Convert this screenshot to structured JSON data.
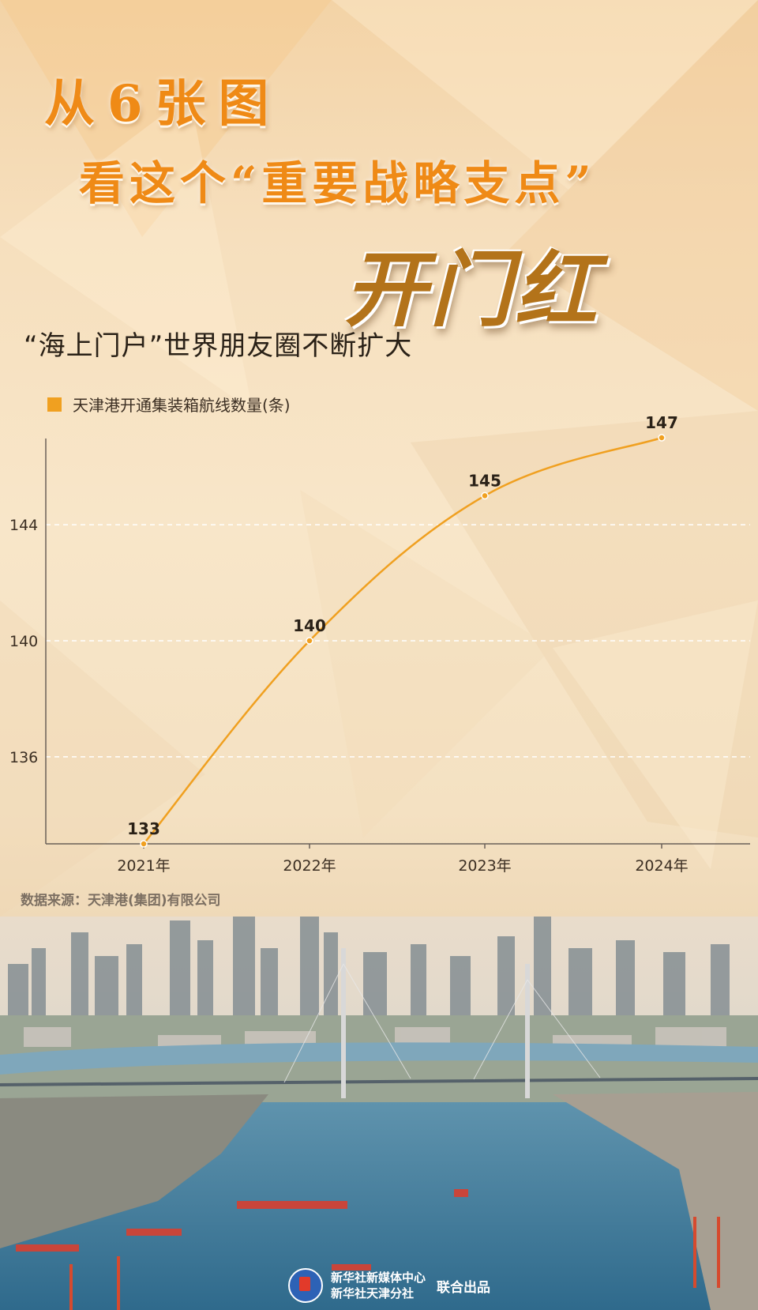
{
  "header": {
    "line1": "从6张图",
    "line2": "看这个“重要战略支点”",
    "line3": "开门红"
  },
  "chart_data": {
    "type": "line",
    "title": "“海上门户”世界朋友圈不断扩大",
    "categories": [
      "2021年",
      "2022年",
      "2023年",
      "2024年"
    ],
    "series": [
      {
        "name": "天津港开通集装箱航线数量(条)",
        "values": [
          133,
          140,
          145,
          147
        ],
        "color": "#f0a020"
      }
    ],
    "yticks": [
      136,
      140,
      144
    ],
    "ylim": [
      133,
      147
    ],
    "grid": "horizontal-dashed",
    "legend": "top-left"
  },
  "source_note": "数据来源：天津港(集团)有限公司",
  "footer": {
    "publisher1": "新华社新媒体中心",
    "publisher2": "新华社天津分社",
    "joint": "联合出品"
  }
}
